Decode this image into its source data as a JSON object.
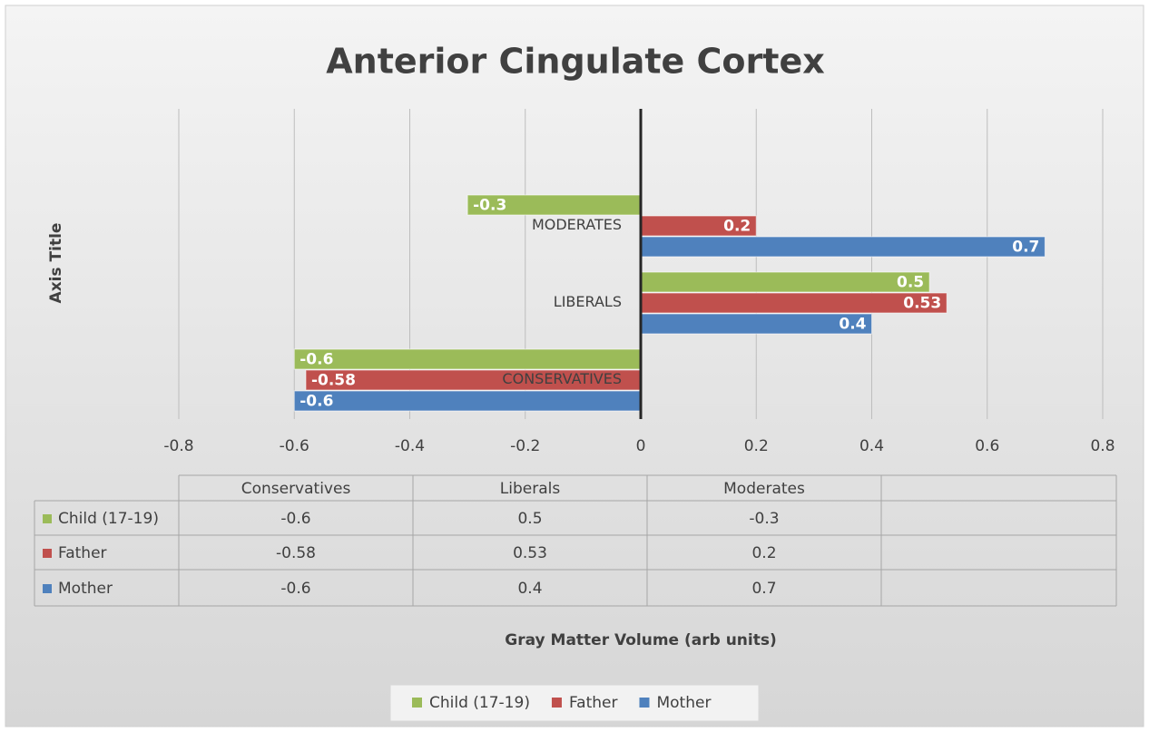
{
  "chart_data": {
    "type": "barh",
    "title": "Anterior Cingulate Cortex",
    "y_label": "Axis Title",
    "x_label": "Gray Matter Volume (arb units)",
    "categories": [
      "CONSERVATIVES",
      "LIBERALS",
      "MODERATES"
    ],
    "table_categories": [
      "Conservatives",
      "Liberals",
      "Moderates"
    ],
    "series": [
      {
        "name": "Child (17-19)",
        "color": "#9bbb59",
        "values": [
          -0.6,
          0.5,
          -0.3
        ]
      },
      {
        "name": "Father",
        "color": "#c0504d",
        "values": [
          -0.58,
          0.53,
          0.2
        ]
      },
      {
        "name": "Mother",
        "color": "#4f81bd",
        "values": [
          -0.6,
          0.4,
          0.7
        ]
      }
    ],
    "xlim": [
      -0.8,
      0.8
    ],
    "xticks": [
      -0.8,
      -0.6,
      -0.4,
      -0.2,
      0,
      0.2,
      0.4,
      0.6,
      0.8
    ],
    "grid": true,
    "legend": "bottom"
  }
}
